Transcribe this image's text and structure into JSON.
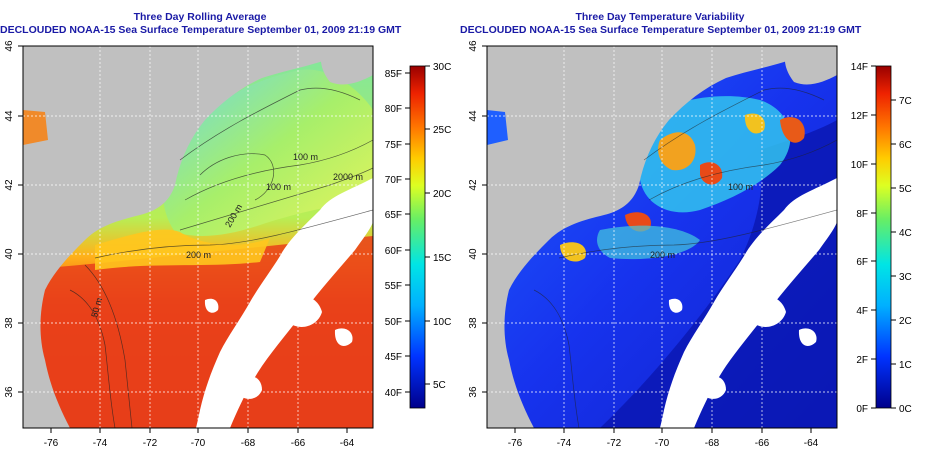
{
  "left_panel": {
    "title": "Three Day Rolling Average",
    "subtitle": "DECLOUDED NOAA-15 Sea Surface Temperature September 01, 2009 21:19 GMT",
    "colorbar": {
      "fahrenheit": [
        "85F",
        "80F",
        "75F",
        "70F",
        "65F",
        "60F",
        "55F",
        "50F",
        "45F",
        "40F"
      ],
      "celsius": [
        "30C",
        "25C",
        "20C",
        "15C",
        "10C",
        "5C"
      ]
    }
  },
  "right_panel": {
    "title": "Three Day Temperature Variability",
    "subtitle": "DECLOUDED NOAA-15 Sea Surface Temperature September 01, 2009 21:19 GMT",
    "colorbar": {
      "fahrenheit": [
        "14F",
        "12F",
        "10F",
        "8F",
        "6F",
        "4F",
        "2F",
        "0F"
      ],
      "celsius": [
        "7C",
        "6C",
        "5C",
        "4C",
        "3C",
        "2C",
        "1C",
        "0C"
      ]
    }
  },
  "axes": {
    "lon_ticks": [
      "-76",
      "-74",
      "-72",
      "-70",
      "-68",
      "-66",
      "-64"
    ],
    "lat_ticks": [
      "46",
      "44",
      "42",
      "40",
      "38",
      "36"
    ]
  },
  "contour_labels": [
    "100 m",
    "100 m",
    "2000 m",
    "200 m",
    "200 m",
    "50 m",
    "200 m",
    "100 m"
  ],
  "colors": {
    "land": "#c0c0c0",
    "cloud": "#ffffff",
    "title": "#1a1aa6"
  }
}
